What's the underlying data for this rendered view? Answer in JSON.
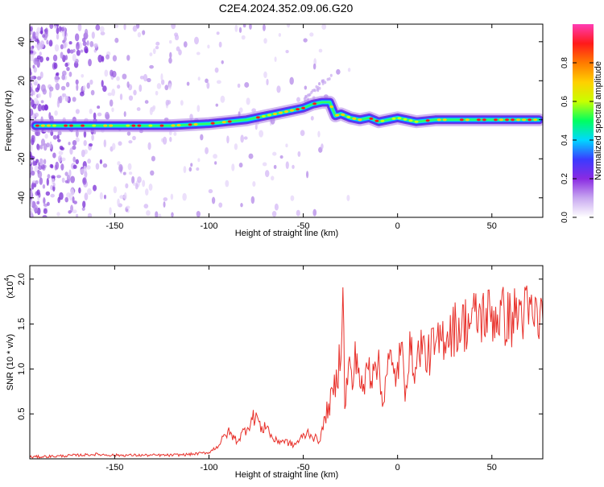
{
  "page_title": "C2E4.2024.352.09.06.G20",
  "colors": {
    "snr_line": "#e8302a",
    "axis": "#000000",
    "colorbar_stops": [
      "#ffffff",
      "#c8a8f0",
      "#8a2be2",
      "#3b3bff",
      "#00d8ff",
      "#00ff60",
      "#c8ff00",
      "#ffd000",
      "#ff7a00",
      "#ff1a1a",
      "#ff3cb4"
    ]
  },
  "chart_data": [
    {
      "type": "heatmap",
      "title": "C2E4.2024.352.09.06.G20",
      "xlabel": "Height of straight line (km)",
      "ylabel": "Frequency (Hz)",
      "xlim": [
        -195,
        77
      ],
      "ylim": [
        -50,
        49
      ],
      "x_ticks": [
        -150,
        -100,
        -50,
        0,
        50
      ],
      "y_ticks": [
        -40,
        -20,
        0,
        20,
        40
      ],
      "colorbar": {
        "label": "Normalized spectral amplitude",
        "range": [
          0,
          1
        ],
        "ticks": [
          0.0,
          0.2,
          0.4,
          0.6,
          0.8
        ]
      },
      "ridge": {
        "x": [
          -192,
          -175,
          -160,
          -140,
          -120,
          -100,
          -90,
          -80,
          -70,
          -60,
          -50,
          -45,
          -40,
          -36,
          -33,
          -30,
          -25,
          -20,
          -15,
          -10,
          -5,
          0,
          5,
          10,
          20,
          40,
          60,
          75
        ],
        "y": [
          -3,
          -3,
          -3,
          -3,
          -3,
          -2,
          -1,
          0,
          2,
          4,
          6,
          8,
          9,
          9,
          2,
          3,
          1,
          0,
          1,
          -1,
          0,
          1,
          0,
          -1,
          0,
          0,
          0,
          0
        ]
      }
    },
    {
      "type": "line",
      "xlabel": "Height of straight line (km)",
      "ylabel": "SNR (10 * v/v)",
      "y_scale_note": "(x10",
      "y_scale_exponent": "4",
      "xlim": [
        -195,
        77
      ],
      "ylim": [
        0,
        2.15
      ],
      "x_ticks": [
        -150,
        -100,
        -50,
        0,
        50
      ],
      "y_ticks": [
        0.5,
        1.0,
        1.5,
        2.0
      ],
      "series": [
        {
          "x": [
            -195,
            -180,
            -160,
            -150,
            -140,
            -120,
            -110,
            -100,
            -95,
            -90,
            -85,
            -80,
            -75,
            -72,
            -70,
            -67,
            -65,
            -60,
            -55,
            -50,
            -47,
            -45,
            -42,
            -40,
            -38,
            -36,
            -34,
            -32,
            -30,
            -29,
            -28,
            -26,
            -24,
            -22,
            -20,
            -18,
            -16,
            -14,
            -12,
            -10,
            -8,
            -6,
            -4,
            -2,
            0,
            2,
            4,
            6,
            8,
            10,
            12,
            14,
            16,
            18,
            20,
            25,
            30,
            35,
            40,
            45,
            50,
            55,
            60,
            65,
            70,
            77
          ],
          "y": [
            0.02,
            0.03,
            0.05,
            0.04,
            0.04,
            0.04,
            0.05,
            0.07,
            0.15,
            0.3,
            0.2,
            0.35,
            0.5,
            0.3,
            0.4,
            0.25,
            0.2,
            0.2,
            0.15,
            0.25,
            0.3,
            0.25,
            0.2,
            0.3,
            0.5,
            0.6,
            0.75,
            0.9,
            1.3,
            2.15,
            0.5,
            1.1,
            0.8,
            1.2,
            0.9,
            0.7,
            1.1,
            0.9,
            1.2,
            1.0,
            0.6,
            1.0,
            1.1,
            0.9,
            1.0,
            1.2,
            0.8,
            1.2,
            1.1,
            1.0,
            1.3,
            1.2,
            1.1,
            1.25,
            1.2,
            1.4,
            1.45,
            1.5,
            1.55,
            1.6,
            1.6,
            1.6,
            1.55,
            1.65,
            1.6,
            1.55
          ]
        }
      ]
    }
  ]
}
